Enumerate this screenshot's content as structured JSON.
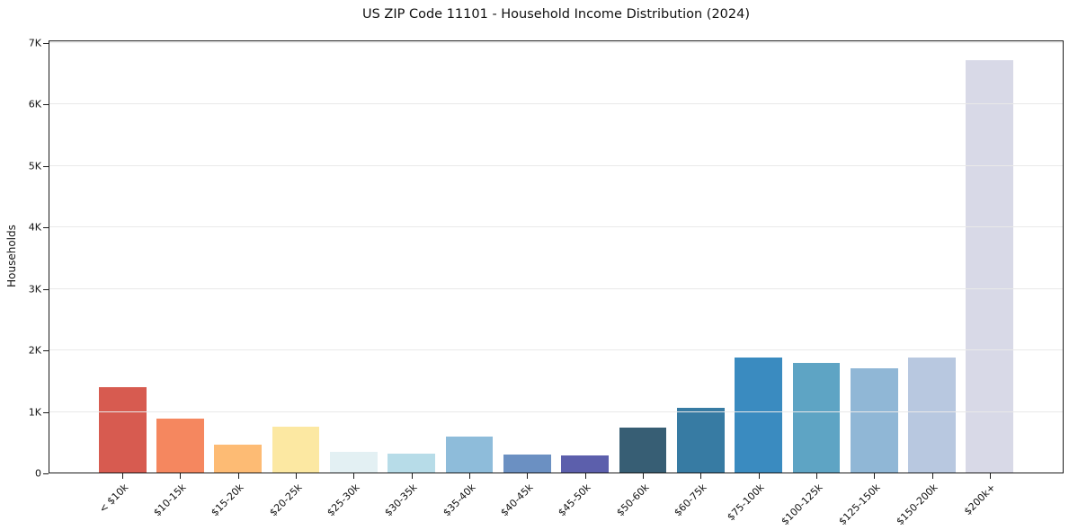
{
  "chart_data": {
    "type": "bar",
    "title": "US ZIP Code 11101 - Household Income Distribution (2024)",
    "xlabel": "",
    "ylabel": "Households",
    "categories": [
      "< $10k",
      "$10-15k",
      "$15-20k",
      "$20-25k",
      "$25-30k",
      "$30-35k",
      "$35-40k",
      "$40-45k",
      "$45-50k",
      "$50-60k",
      "$60-75k",
      "$75-100k",
      "$100-125k",
      "$125-150k",
      "$150-200k",
      "$200k+"
    ],
    "values": [
      1390,
      880,
      450,
      740,
      340,
      310,
      590,
      290,
      280,
      730,
      1050,
      1870,
      1780,
      1700,
      1870,
      6700
    ],
    "bar_colors": [
      "#d75b50",
      "#f5875f",
      "#fdbb74",
      "#fce8a2",
      "#e3f0f3",
      "#b7dce8",
      "#8ebcda",
      "#6b90c2",
      "#5c5fac",
      "#375e74",
      "#377ba3",
      "#3a8bc0",
      "#5ea4c4",
      "#90b7d6",
      "#b8c8e0",
      "#d8d9e7"
    ],
    "ylim": [
      0,
      7040
    ],
    "ytick_values": [
      0,
      1000,
      2000,
      3000,
      4000,
      5000,
      6000,
      7000
    ],
    "ytick_labels": [
      "0",
      "1K",
      "2K",
      "3K",
      "4K",
      "5K",
      "6K",
      "7K"
    ],
    "grid": "horizontal",
    "legend": "none",
    "background_color": "#ffffff",
    "gridline_color": "#e9e9e9",
    "spine_color": "#1a1a1a"
  }
}
